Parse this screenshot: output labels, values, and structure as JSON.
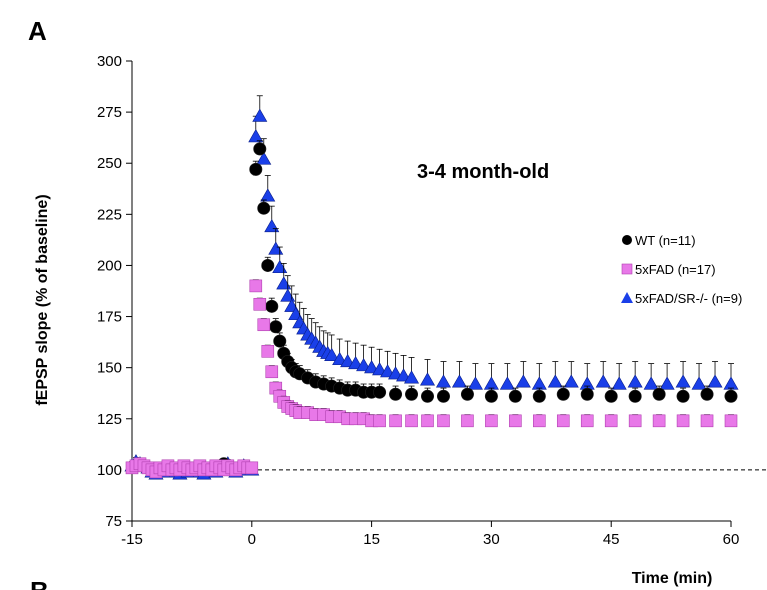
{
  "panel_label": "A",
  "next_panel_label": "B",
  "chart_data": {
    "type": "scatter",
    "annotation": "3-4 month-old",
    "xlabel": "Time (min)",
    "ylabel": "fEPSP slope (% of baseline)",
    "xlim": [
      -15,
      60
    ],
    "ylim": [
      75,
      300
    ],
    "x_ticks": [
      -15,
      0,
      15,
      30,
      45,
      60
    ],
    "y_ticks": [
      75,
      100,
      125,
      150,
      175,
      200,
      225,
      250,
      275,
      300
    ],
    "baseline": 100,
    "grid": false,
    "legend_position": "right",
    "series": [
      {
        "name": "WT (n=11)",
        "marker": "circle",
        "color": "#000000",
        "x": [
          -3.5,
          -2.5,
          0.5,
          1,
          1.5,
          2,
          2.5,
          3,
          3.5,
          4,
          4.5,
          5,
          5.5,
          6,
          7,
          8,
          9,
          10,
          11,
          12,
          13,
          14,
          15,
          16,
          18,
          20,
          22,
          24,
          27,
          30,
          33,
          36,
          39,
          42,
          45,
          48,
          51,
          54,
          57,
          60
        ],
        "y": [
          103,
          101,
          247,
          257,
          228,
          200,
          180,
          170,
          163,
          157,
          153,
          150,
          148,
          147,
          145,
          143,
          142,
          141,
          140,
          139,
          139,
          138,
          138,
          138,
          137,
          137,
          136,
          136,
          137,
          136,
          136,
          136,
          137,
          137,
          136,
          136,
          137,
          136,
          137,
          136
        ],
        "error": 4
      },
      {
        "name": "5xFAD (n=17)",
        "marker": "square",
        "color": "#e878e8",
        "x": [
          -15,
          -14.5,
          -14,
          -13.5,
          -13,
          -12.5,
          -12,
          -11.5,
          -11,
          -10.5,
          -10,
          -9.5,
          -9,
          -8.5,
          -8,
          -7.5,
          -7,
          -6.5,
          -6,
          -5.5,
          -5,
          -4.5,
          -4,
          -3.5,
          -3,
          -2.5,
          -2,
          -1.5,
          -1,
          -0.5,
          0,
          0.5,
          1,
          1.5,
          2,
          2.5,
          3,
          3.5,
          4,
          4.5,
          5,
          5.5,
          6,
          7,
          8,
          9,
          10,
          11,
          12,
          13,
          14,
          15,
          16,
          18,
          20,
          22,
          24,
          27,
          30,
          33,
          36,
          39,
          42,
          45,
          48,
          51,
          54,
          57,
          60
        ],
        "y": [
          101,
          102,
          103,
          102,
          101,
          100,
          99,
          101,
          100,
          102,
          100,
          101,
          100,
          102,
          101,
          100,
          101,
          102,
          100,
          101,
          100,
          102,
          101,
          100,
          102,
          101,
          100,
          101,
          102,
          101,
          101,
          190,
          181,
          171,
          158,
          148,
          140,
          136,
          133,
          131,
          130,
          129,
          128,
          128,
          127,
          127,
          126,
          126,
          125,
          125,
          125,
          124,
          124,
          124,
          124,
          124,
          124,
          124,
          124,
          124,
          124,
          124,
          124,
          124,
          124,
          124,
          124,
          124,
          124
        ],
        "error": 3
      },
      {
        "name": "5xFAD/SR-/- (n=9)",
        "marker": "triangle",
        "color": "#1a3fe8",
        "x": [
          -15,
          -14.5,
          -14,
          -13.5,
          -13,
          -12.5,
          -12,
          -11.5,
          -11,
          -10.5,
          -10,
          -9.5,
          -9,
          -8.5,
          -8,
          -7.5,
          -7,
          -6.5,
          -6,
          -5.5,
          -5,
          -4.5,
          -4,
          -3.5,
          -3,
          -2.5,
          -2,
          -1.5,
          -1,
          -0.5,
          0,
          0.5,
          1,
          1.5,
          2,
          2.5,
          3,
          3.5,
          4,
          4.5,
          5,
          5.5,
          6,
          6.5,
          7,
          7.5,
          8,
          8.5,
          9,
          9.5,
          10,
          11,
          12,
          13,
          14,
          15,
          16,
          17,
          18,
          19,
          20,
          22,
          24,
          26,
          28,
          30,
          32,
          34,
          36,
          38,
          40,
          42,
          44,
          46,
          48,
          50,
          52,
          54,
          56,
          58,
          60
        ],
        "y": [
          102,
          104,
          103,
          102,
          101,
          99,
          98,
          100,
          99,
          101,
          100,
          99,
          98,
          100,
          99,
          100,
          101,
          99,
          98,
          100,
          101,
          99,
          100,
          101,
          103,
          100,
          99,
          101,
          102,
          100,
          100,
          263,
          273,
          252,
          234,
          219,
          208,
          199,
          191,
          185,
          180,
          176,
          172,
          169,
          166,
          164,
          162,
          160,
          158,
          157,
          156,
          154,
          153,
          152,
          151,
          150,
          149,
          148,
          147,
          146,
          145,
          144,
          143,
          143,
          142,
          142,
          142,
          143,
          142,
          143,
          143,
          142,
          143,
          142,
          143,
          142,
          142,
          143,
          142,
          143,
          142
        ],
        "error": 10
      }
    ]
  }
}
